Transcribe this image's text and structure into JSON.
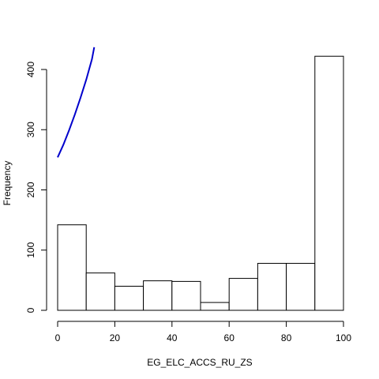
{
  "chart_data": {
    "type": "bar",
    "subtype": "histogram",
    "title": "",
    "xlabel": "EG_ELC_ACCS_RU_ZS",
    "ylabel": "Frequency",
    "bins": [
      {
        "start": 0,
        "end": 10,
        "count": 142
      },
      {
        "start": 10,
        "end": 20,
        "count": 62
      },
      {
        "start": 20,
        "end": 30,
        "count": 40
      },
      {
        "start": 30,
        "end": 40,
        "count": 49
      },
      {
        "start": 40,
        "end": 50,
        "count": 48
      },
      {
        "start": 50,
        "end": 60,
        "count": 13
      },
      {
        "start": 60,
        "end": 70,
        "count": 53
      },
      {
        "start": 70,
        "end": 80,
        "count": 78
      },
      {
        "start": 80,
        "end": 90,
        "count": 78
      },
      {
        "start": 90,
        "end": 100,
        "count": 422
      }
    ],
    "xlim": [
      0,
      100
    ],
    "ylim": [
      0,
      460
    ],
    "x_ticks": [
      0,
      20,
      40,
      60,
      80,
      100
    ],
    "y_ticks": [
      0,
      100,
      200,
      300,
      400
    ],
    "grid": false,
    "overlay_line": {
      "color": "#0000cc",
      "x": [
        0,
        2,
        4,
        6,
        8,
        10,
        12,
        12.8
      ],
      "y": [
        254,
        275,
        299,
        325,
        353,
        383,
        417,
        437
      ]
    },
    "colors": {
      "bar_fill": "#ffffff",
      "bar_stroke": "#000000",
      "line": "#0000cc"
    }
  }
}
